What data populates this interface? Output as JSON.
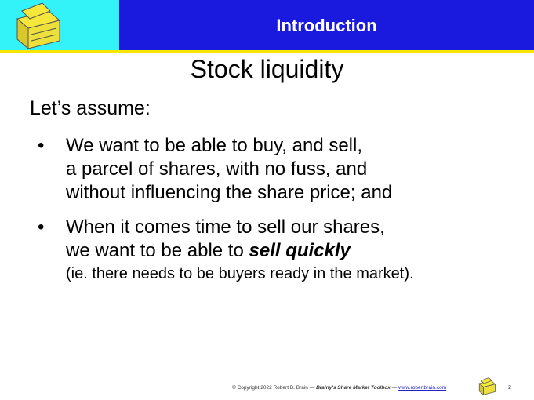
{
  "header": {
    "section": "Introduction"
  },
  "slide": {
    "title": "Stock liquidity",
    "intro": "Let’s assume:",
    "bullets": [
      {
        "lines": [
          "We want to be able to buy, and sell,",
          "a parcel of shares, with no fuss, and",
          "without influencing the share price; and"
        ]
      },
      {
        "lines": [
          "When it comes time to sell our shares,",
          "we want to be able to"
        ],
        "emphasis": "sell quickly",
        "note": "(ie. there needs to be buyers ready in the market)."
      }
    ]
  },
  "footer": {
    "copyright": "© Copyright 2022 Robert B. Brain",
    "separator": "—",
    "toolbox": "Brainy's Share Market Toolbox",
    "link": "www.robertbrain.com",
    "page": "2"
  }
}
